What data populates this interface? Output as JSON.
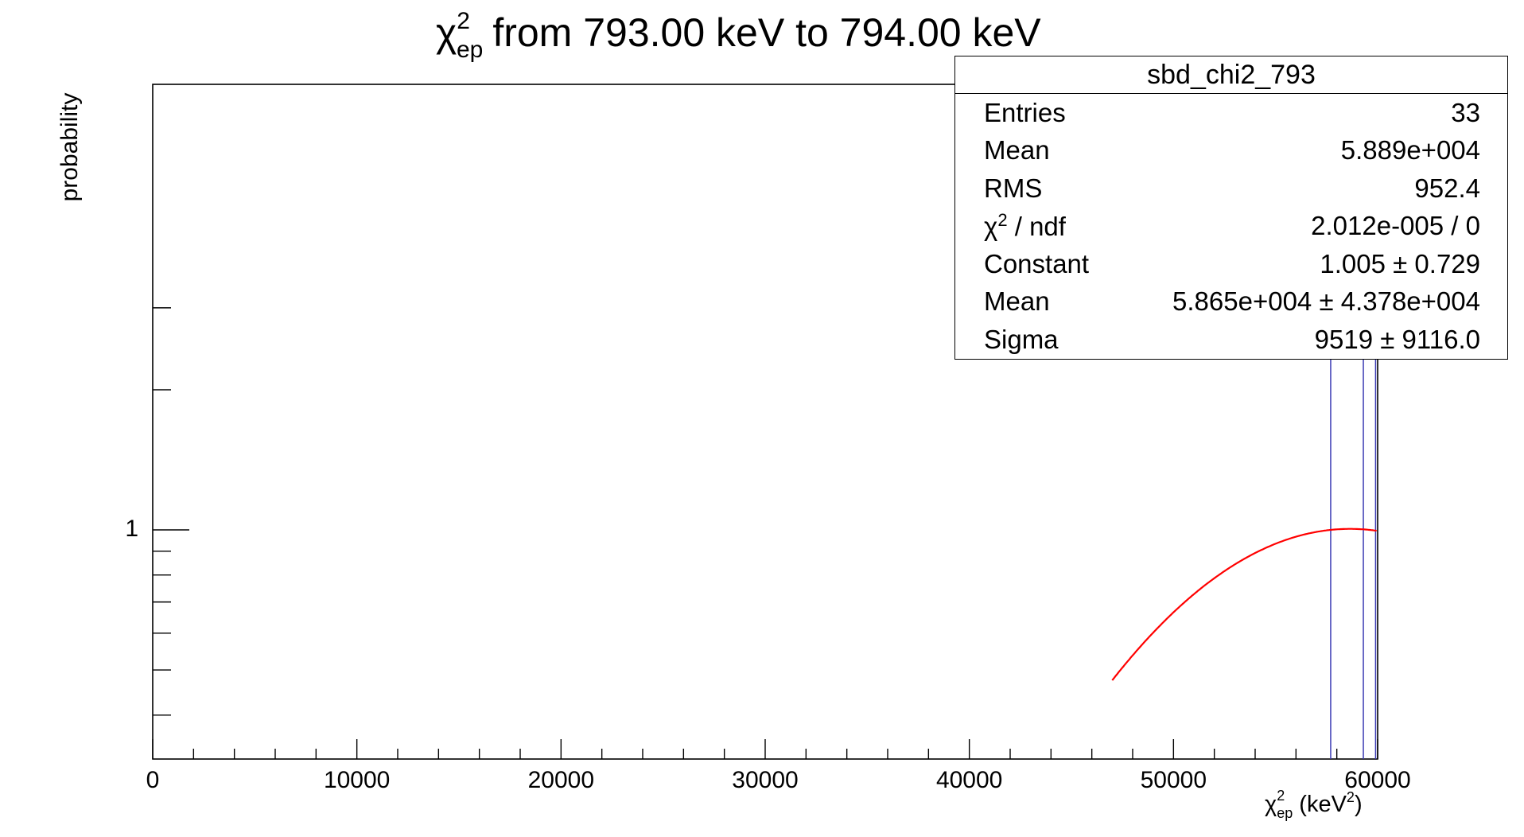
{
  "chart_data": {
    "type": "histogram",
    "title": "χ²ep from 793.00 keV to 794.00 keV",
    "title_parts": {
      "symbol": "χ",
      "sup": "2",
      "sub": "ep",
      "rest": "from 793.00 keV to 794.00 keV"
    },
    "xlabel": "χ²ep (keV²)",
    "xlabel_parts": {
      "symbol": "χ",
      "sup": "2",
      "sub": "ep",
      "unit_open": "(keV",
      "unit_sup": "2",
      "unit_close": ")"
    },
    "ylabel": "probability",
    "xlim": [
      0,
      60000
    ],
    "ylog": true,
    "x_ticks": [
      0,
      10000,
      20000,
      30000,
      40000,
      50000,
      60000
    ],
    "x_tick_labels": [
      "0",
      "10000",
      "20000",
      "30000",
      "40000",
      "50000",
      "60000"
    ],
    "y_tick_labels": [
      "1"
    ],
    "histogram_lines_x": [
      57700,
      59300,
      59900
    ],
    "histogram_color": "#3b3bb4",
    "fit": {
      "function": "gaus",
      "color": "#ff0000",
      "constant": 1.005,
      "mean": 58650,
      "sigma": 9519,
      "x_range": [
        47000,
        59950
      ]
    }
  },
  "stats": {
    "name": "sbd_chi2_793",
    "rows": [
      {
        "label": "Entries",
        "value": "33"
      },
      {
        "label": "Mean",
        "value": "5.889e+004"
      },
      {
        "label": "RMS",
        "value": "952.4"
      },
      {
        "label": "χ² / ndf",
        "label_main": "χ",
        "label_sup": "2",
        "label_rest": " / ndf",
        "value": "2.012e-005 / 0"
      },
      {
        "label": "Constant",
        "value": "1.005 ± 0.729"
      },
      {
        "label": "Mean",
        "value": "5.865e+004 ± 4.378e+004"
      },
      {
        "label": "Sigma",
        "value": "9519 ± 9116.0"
      }
    ]
  }
}
